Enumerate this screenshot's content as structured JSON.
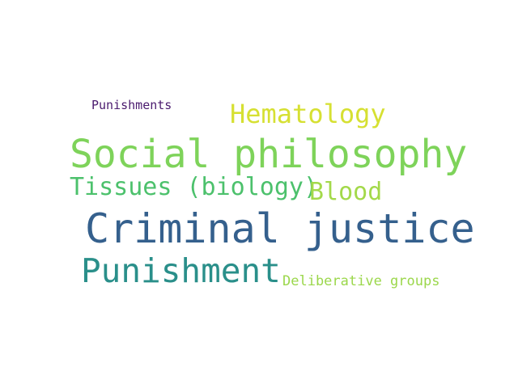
{
  "word_cloud": {
    "words": [
      {
        "id": "punishments",
        "text": "Punishments",
        "color": "#4a1a6e",
        "weight": 1
      },
      {
        "id": "hematology",
        "text": "Hematology",
        "color": "#d6e032",
        "weight": 2
      },
      {
        "id": "social-philosophy",
        "text": "Social philosophy",
        "color": "#7ed35a",
        "weight": 4
      },
      {
        "id": "tissues-biology",
        "text": "Tissues (biology)",
        "color": "#4cc16c",
        "weight": 2
      },
      {
        "id": "blood",
        "text": "Blood",
        "color": "#a3d94a",
        "weight": 2
      },
      {
        "id": "criminal-justice",
        "text": "Criminal justice",
        "color": "#35608d",
        "weight": 4
      },
      {
        "id": "punishment",
        "text": "Punishment",
        "color": "#2a8f8a",
        "weight": 3
      },
      {
        "id": "deliberative-groups",
        "text": "Deliberative groups",
        "color": "#9bd74b",
        "weight": 1
      }
    ]
  }
}
